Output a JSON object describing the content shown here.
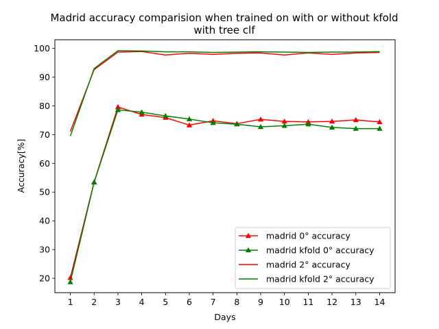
{
  "chart_data": {
    "type": "line",
    "title": "Madrid accuracy comparision when trained on with or without kfold",
    "subtitle": "with tree clf",
    "xlabel": "Days",
    "ylabel": "Accuracy[%]",
    "xlim": [
      0.35,
      14.65
    ],
    "ylim": [
      15,
      103
    ],
    "x": [
      1,
      2,
      3,
      4,
      5,
      6,
      7,
      8,
      9,
      10,
      11,
      12,
      13,
      14
    ],
    "xticks": [
      1,
      2,
      3,
      4,
      5,
      6,
      7,
      8,
      9,
      10,
      11,
      12,
      13,
      14
    ],
    "yticks": [
      20,
      30,
      40,
      50,
      60,
      70,
      80,
      90,
      100
    ],
    "grid": false,
    "legend_position": "lower right",
    "series": [
      {
        "name": "madrid 0° accuracy",
        "color": "#ff0000",
        "marker": "triangle",
        "values": [
          20.2,
          53.5,
          79.6,
          77.0,
          75.9,
          73.3,
          74.8,
          73.8,
          75.3,
          74.6,
          74.4,
          74.6,
          75.1,
          74.4
        ]
      },
      {
        "name": "madrid kfold 0° accuracy",
        "color": "#008000",
        "marker": "triangle",
        "values": [
          18.7,
          53.4,
          78.6,
          77.8,
          76.5,
          75.4,
          74.1,
          73.6,
          72.7,
          73.1,
          73.6,
          72.5,
          72.1,
          72.1
        ]
      },
      {
        "name": "madrid 2° accuracy",
        "color": "#ff0000",
        "marker": "none",
        "values": [
          71.1,
          92.6,
          98.7,
          98.9,
          97.7,
          98.3,
          97.9,
          98.3,
          98.4,
          97.7,
          98.4,
          97.9,
          98.4,
          98.6
        ]
      },
      {
        "name": "madrid kfold 2° accuracy",
        "color": "#008000",
        "marker": "none",
        "values": [
          69.5,
          93.0,
          99.2,
          99.1,
          98.8,
          98.8,
          98.6,
          98.7,
          98.8,
          98.7,
          98.6,
          98.7,
          98.7,
          98.9
        ]
      }
    ]
  }
}
